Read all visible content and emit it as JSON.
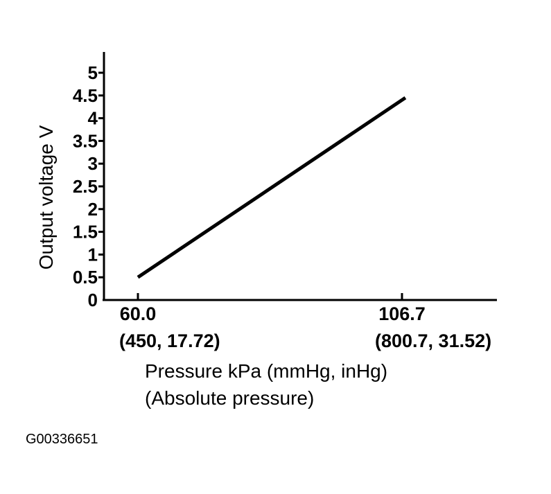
{
  "figure_id": "G00336651",
  "chart_data": {
    "type": "line",
    "title": "",
    "xlabel": "Pressure kPa (mmHg, inHg)",
    "xlabel_sub": "(Absolute pressure)",
    "ylabel": "Output voltage V",
    "ylim": [
      0,
      5
    ],
    "y_ticks": [
      "0",
      "0.5",
      "1",
      "1.5",
      "2",
      "2.5",
      "3",
      "3.5",
      "4",
      "4.5",
      "5"
    ],
    "x_ticks": [
      {
        "value": 60.0,
        "label": "60.0",
        "sublabel": "(450, 17.72)"
      },
      {
        "value": 106.7,
        "label": "106.7",
        "sublabel": "(800.7, 31.52)"
      }
    ],
    "xlim": [
      53.7,
      124.3
    ],
    "grid": false,
    "series": [
      {
        "x": [
          60.0,
          107.3
        ],
        "y": [
          0.5,
          4.45
        ]
      }
    ]
  }
}
